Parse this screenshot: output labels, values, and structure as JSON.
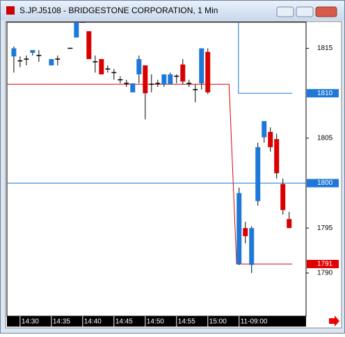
{
  "window_title": "S.JP.J5108 - BRIDGESTONE CORPORATION, 1 Min",
  "chart_data": {
    "type": "candlestick",
    "up_color": "#1e78d8",
    "down_color": "#d80000",
    "x": [
      0,
      1,
      2,
      3,
      4,
      6,
      7,
      9,
      10,
      11,
      12,
      13,
      14,
      15,
      16,
      17,
      18,
      19,
      20,
      21,
      22,
      23,
      24,
      25,
      26,
      27,
      28,
      29,
      30,
      31,
      36,
      37,
      38,
      39,
      40,
      41,
      42,
      43,
      44
    ],
    "open": [
      1814.1,
      1813.6,
      1813.8,
      1814.5,
      1814.2,
      1813.1,
      1813.8,
      1815,
      1816.2,
      1817.9,
      1816.9,
      1813.5,
      1813.8,
      1812.7,
      1812.3,
      1811.5,
      1811.1,
      1810.1,
      1812.1,
      1813.1,
      1811,
      1811.1,
      1811,
      1811,
      1811.9,
      1813.2,
      1811.1,
      1810.4,
      1811.1,
      1814.6,
      1791,
      1795,
      1790.9,
      1798,
      1805.1,
      1805.7,
      1804.9,
      1799.9,
      1796
    ],
    "high": [
      1815.2,
      1814.1,
      1814.2,
      1814.8,
      1814.8,
      1813.8,
      1814.2,
      1815,
      1817.9,
      1817.9,
      1816.9,
      1814.2,
      1813.8,
      1813.1,
      1812.7,
      1811.9,
      1811.5,
      1811.1,
      1814.2,
      1813.1,
      1812.1,
      1811.5,
      1812.1,
      1812.3,
      1812.1,
      1813.8,
      1811.5,
      1811,
      1815,
      1815,
      1799.5,
      1795.7,
      1795.2,
      1804.5,
      1806.9,
      1806.2,
      1805.5,
      1800.5,
      1796.8
    ],
    "low": [
      1812.3,
      1812.9,
      1813.1,
      1814.2,
      1813.5,
      1813.1,
      1813.1,
      1815,
      1816.2,
      1817.9,
      1813.8,
      1812.3,
      1812.1,
      1812.3,
      1811.5,
      1811.1,
      1810.7,
      1810.1,
      1811.1,
      1807.1,
      1810.1,
      1810.7,
      1810.7,
      1811,
      1811.1,
      1811,
      1810.7,
      1809,
      1810.4,
      1809.9,
      1790.9,
      1793.3,
      1790,
      1797.5,
      1804.5,
      1803.5,
      1800.5,
      1796.5,
      1795
    ],
    "close": [
      1815,
      1813.6,
      1813.8,
      1814.8,
      1814.2,
      1813.8,
      1813.8,
      1815,
      1817.9,
      1817.9,
      1813.8,
      1813.5,
      1812.1,
      1812.7,
      1812.3,
      1811.5,
      1811.1,
      1811.1,
      1813.8,
      1810,
      1811,
      1811.1,
      1812.1,
      1812.1,
      1811.9,
      1811.3,
      1811.1,
      1810.4,
      1815,
      1810.1,
      1798.9,
      1794.1,
      1795,
      1804,
      1806.9,
      1804,
      1801.1,
      1797,
      1795
    ],
    "lines": [
      {
        "color": "#e00000",
        "x": [
          -1.1,
          34.4,
          35.6,
          44.5
        ],
        "values": [
          1811,
          1811,
          1791,
          1791
        ]
      },
      {
        "color": "#1e78d8",
        "x": [
          35.9,
          35.9,
          44.5
        ],
        "values": [
          1818,
          1810,
          1810
        ]
      },
      {
        "color": "#1e78d8",
        "x": [
          -1.1,
          46.7
        ],
        "values": [
          1800,
          1800
        ]
      }
    ],
    "price_markers": [
      {
        "value": 1810,
        "color": "#1e78d8"
      },
      {
        "value": 1800,
        "color": "#1e78d8"
      },
      {
        "value": 1791,
        "color": "#e00000"
      }
    ],
    "xlim": [
      -1.1,
      46.7
    ],
    "ylim": [
      1785.2,
      1817.9
    ],
    "yticks": [
      1790,
      1795,
      1805,
      1815
    ],
    "xticks": [
      {
        "value": 1,
        "label": "14:30"
      },
      {
        "value": 6,
        "label": "14:35"
      },
      {
        "value": 11,
        "label": "14:40"
      },
      {
        "value": 16,
        "label": "14:45"
      },
      {
        "value": 21,
        "label": "14:50"
      },
      {
        "value": 26,
        "label": "14:55"
      },
      {
        "value": 31,
        "label": "15:00"
      },
      {
        "value": 36,
        "label": "11-09:00"
      }
    ]
  }
}
